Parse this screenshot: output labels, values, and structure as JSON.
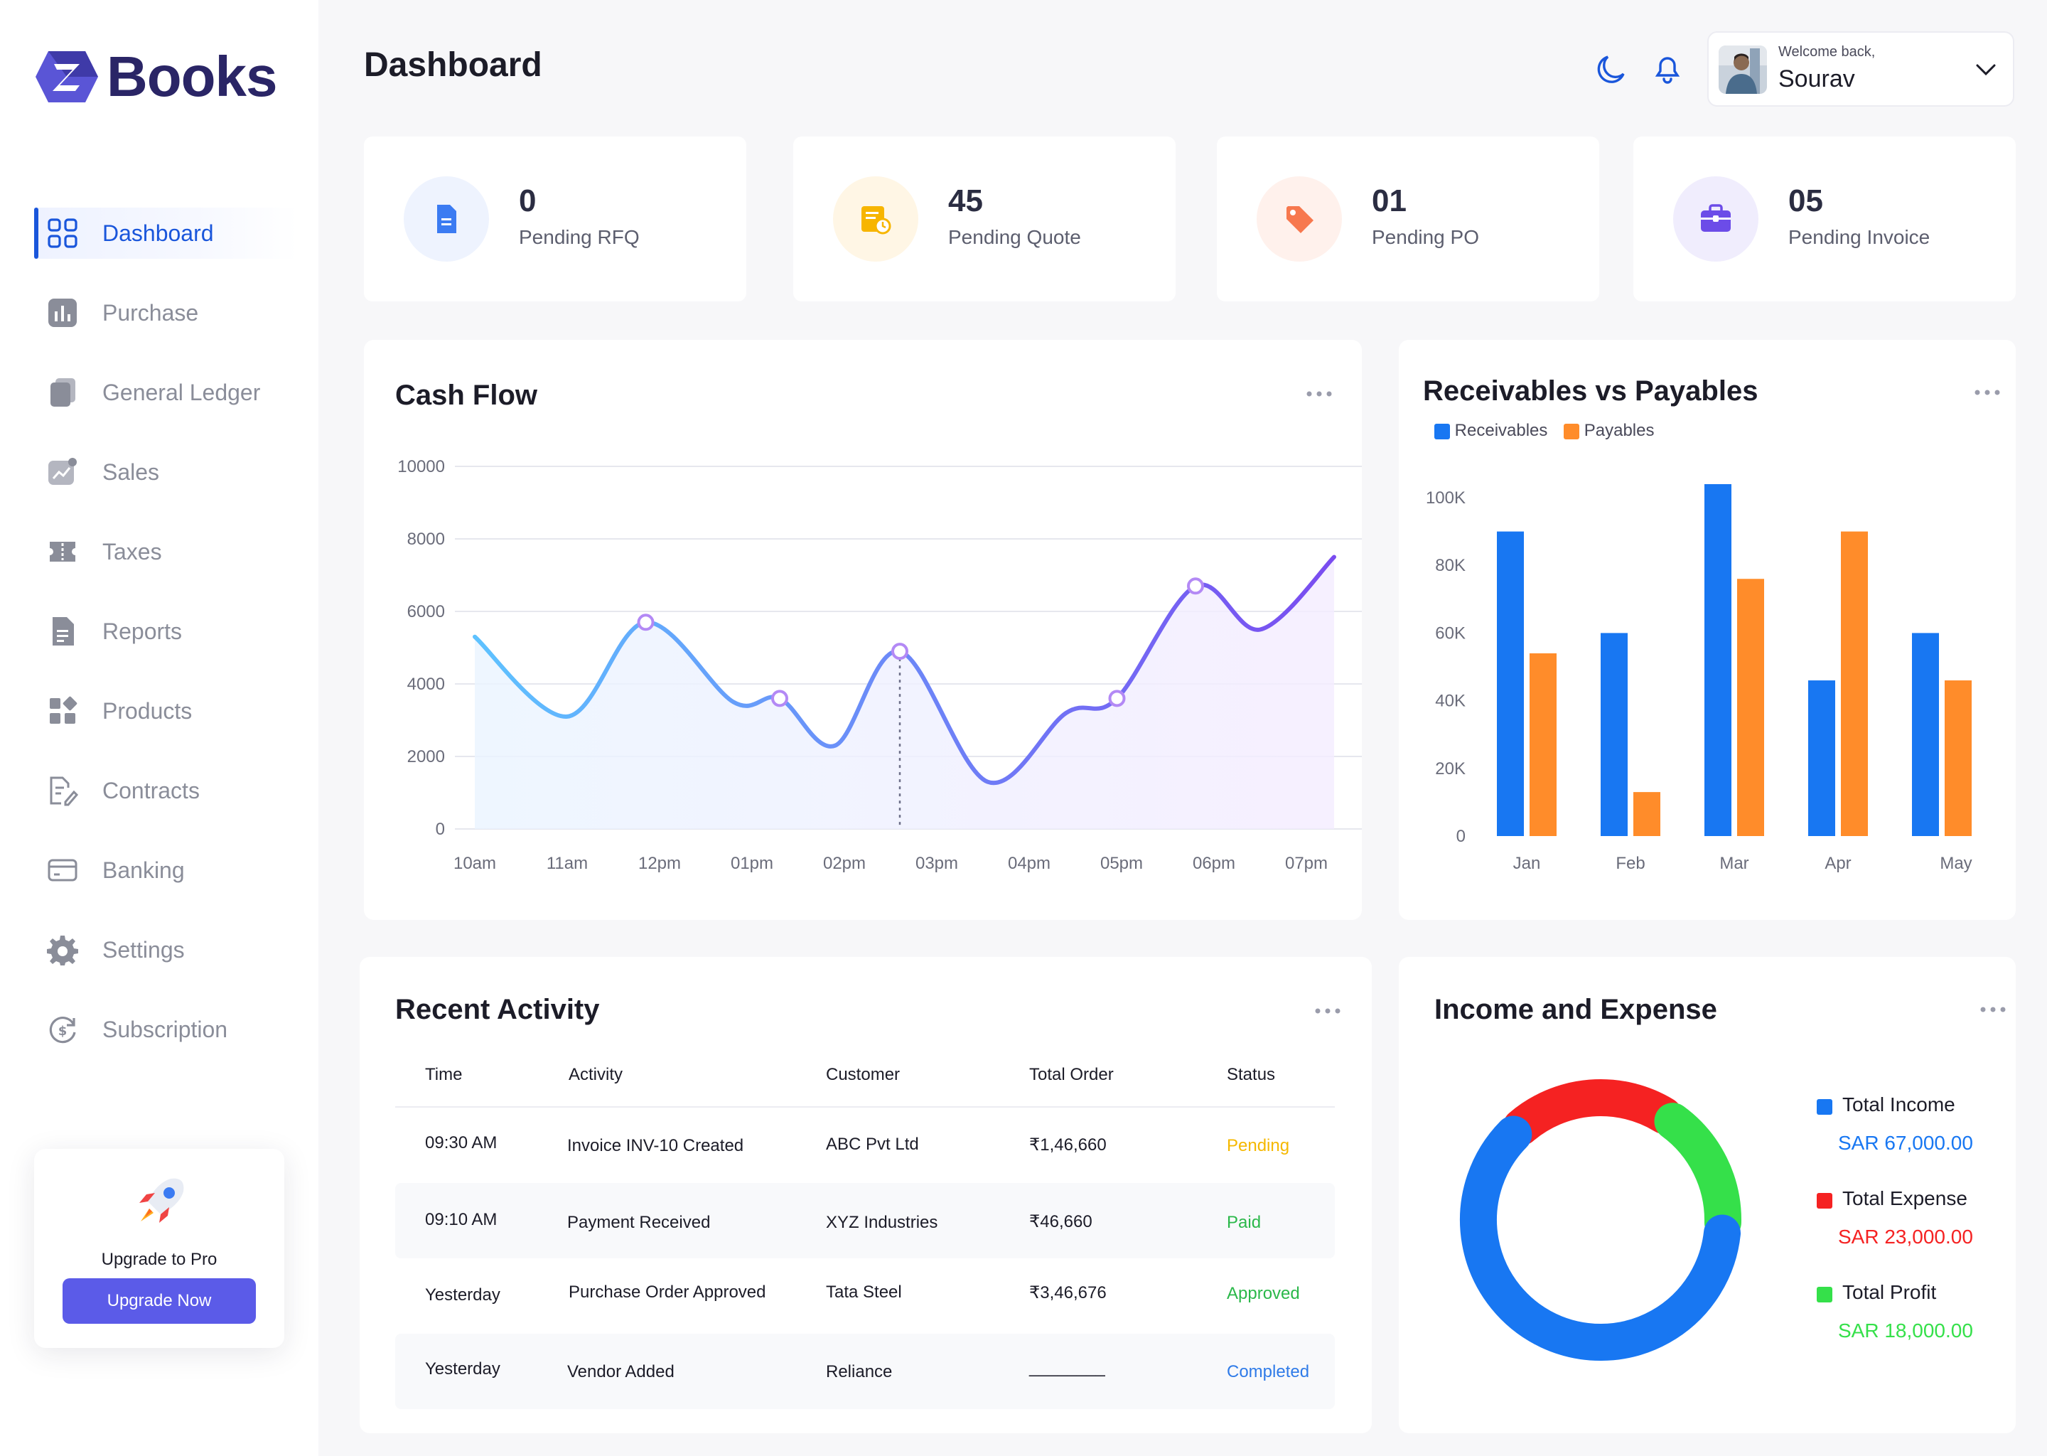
{
  "app": {
    "logo_letter": "Z",
    "logo_text": "Books"
  },
  "sidebar": {
    "items": [
      {
        "label": "Dashboard",
        "icon": "grid-icon",
        "active": true
      },
      {
        "label": "Purchase",
        "icon": "bar-chart-icon"
      },
      {
        "label": "General Ledger",
        "icon": "ledger-icon"
      },
      {
        "label": "Sales",
        "icon": "trend-icon"
      },
      {
        "label": "Taxes",
        "icon": "ticket-icon"
      },
      {
        "label": "Reports",
        "icon": "report-icon"
      },
      {
        "label": "Products",
        "icon": "products-icon"
      },
      {
        "label": "Contracts",
        "icon": "contract-icon"
      },
      {
        "label": "Banking",
        "icon": "card-icon"
      },
      {
        "label": "Settings",
        "icon": "gear-icon"
      },
      {
        "label": "Subscription",
        "icon": "subscription-icon"
      }
    ],
    "upgrade": {
      "title": "Upgrade to Pro",
      "button": "Upgrade Now",
      "icon": "rocket-icon"
    }
  },
  "header": {
    "title": "Dashboard",
    "icons": [
      "moon-icon",
      "bell-icon"
    ],
    "user": {
      "welcome": "Welcome back,",
      "name": "Sourav"
    }
  },
  "stats": [
    {
      "value": "0",
      "label": "Pending RFQ",
      "icon": "document-icon",
      "color": "#3b7bf2",
      "bg": "#eef3fe"
    },
    {
      "value": "45",
      "label": "Pending Quote",
      "icon": "quote-clock-icon",
      "color": "#f7b500",
      "bg": "#fff6e5"
    },
    {
      "value": "01",
      "label": "Pending PO",
      "icon": "tag-icon",
      "color": "#f7784e",
      "bg": "#fff1ec"
    },
    {
      "value": "05",
      "label": "Pending Invoice",
      "icon": "briefcase-icon",
      "color": "#6c4ce8",
      "bg": "#f0edfd"
    }
  ],
  "cash_flow": {
    "title": "Cash Flow",
    "chart_data": {
      "type": "line",
      "title": "Cash Flow",
      "x": [
        "10am",
        "11am",
        "12pm",
        "01pm",
        "02pm",
        "03pm",
        "04pm",
        "05pm",
        "06pm",
        "07pm"
      ],
      "yticks": [
        0,
        2000,
        4000,
        6000,
        8000,
        10000
      ],
      "ylim": [
        0,
        10000
      ],
      "points": [
        [
          0,
          5300
        ],
        [
          1.0,
          3100
        ],
        [
          1.85,
          5700
        ],
        [
          2.8,
          3500
        ],
        [
          3.3,
          3600
        ],
        [
          3.9,
          2300
        ],
        [
          4.6,
          4900
        ],
        [
          5.55,
          1300
        ],
        [
          6.4,
          3200
        ],
        [
          6.95,
          3600
        ],
        [
          7.8,
          6700
        ],
        [
          8.5,
          5500
        ],
        [
          9.3,
          7500
        ]
      ],
      "markers": [
        [
          1.85,
          5700
        ],
        [
          3.3,
          3600
        ],
        [
          4.6,
          4900
        ],
        [
          6.95,
          3600
        ],
        [
          7.8,
          6700
        ]
      ],
      "dashed_at": 4.6,
      "grid": true
    }
  },
  "receivables": {
    "title": "Receivables vs Payables",
    "chart_data": {
      "type": "bar",
      "title": "Receivables vs Payables",
      "categories": [
        "Jan",
        "Feb",
        "Mar",
        "Apr",
        "May"
      ],
      "series": [
        {
          "name": "Receivables",
          "color": "#1877f2",
          "values": [
            90000,
            60000,
            104000,
            46000,
            60000
          ]
        },
        {
          "name": "Payables",
          "color": "#ff8c2a",
          "values": [
            54000,
            13000,
            76000,
            90000,
            46000
          ]
        }
      ],
      "ytick_labels": [
        "0",
        "20K",
        "40K",
        "60K",
        "80K",
        "100K"
      ],
      "ylim": [
        0,
        100000
      ],
      "legend": "top-left",
      "grid": false
    }
  },
  "activity": {
    "title": "Recent Activity",
    "columns": [
      "Time",
      "Activity",
      "Customer",
      "Total Order",
      "Status"
    ],
    "rows": [
      {
        "time": "09:30 AM",
        "activity": "Invoice INV-10 Created",
        "customer": "ABC Pvt Ltd",
        "total": "₹1,46,660",
        "status": "Pending",
        "status_color": "#f5b800"
      },
      {
        "time": "09:10 AM",
        "activity": "Payment Received",
        "customer": "XYZ Industries",
        "total": "₹46,660",
        "status": "Paid",
        "status_color": "#2bb84a"
      },
      {
        "time": "Yesterday",
        "activity": "Purchase Order Approved",
        "customer": "Tata Steel",
        "total": "₹3,46,676",
        "status": "Approved",
        "status_color": "#2bb84a"
      },
      {
        "time": "Yesterday",
        "activity": "Vendor Added",
        "customer": "Reliance",
        "total": "________",
        "status": "Completed",
        "status_color": "#2f7be8"
      }
    ]
  },
  "income": {
    "title": "Income and Expense",
    "chart_data": {
      "type": "pie",
      "title": "Income and Expense",
      "slices": [
        {
          "name": "Total Income",
          "value": 67000,
          "display": "SAR 67,000.00",
          "color": "#1877f2"
        },
        {
          "name": "Total Expense",
          "value": 23000,
          "display": "SAR 23,000.00",
          "color": "#f52222"
        },
        {
          "name": "Total Profit",
          "value": 18000,
          "display": "SAR 18,000.00",
          "color": "#35e04a"
        }
      ]
    }
  }
}
